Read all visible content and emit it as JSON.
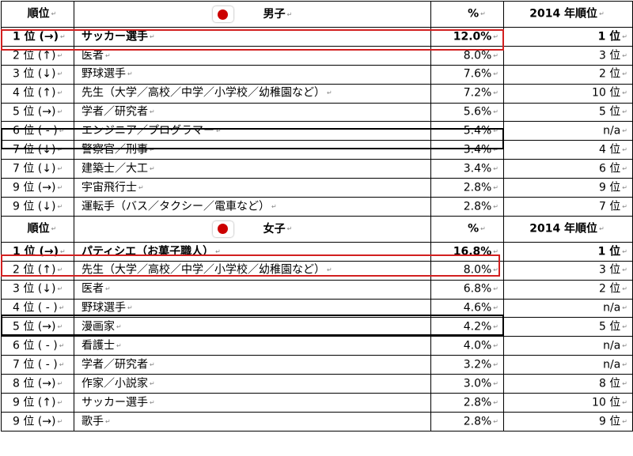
{
  "headers": {
    "rank": "順位",
    "boys": "男子",
    "girls": "女子",
    "percent": "%",
    "prev_rank": "2014 年順位"
  },
  "colors": {
    "flag_sun": "#cc0000",
    "highlight_red": "#d21f1f",
    "highlight_black": "#000000"
  },
  "boys": [
    {
      "rank": "1 位 (→)",
      "job": "サッカー選手",
      "pct": "12.0%",
      "prev": "1 位"
    },
    {
      "rank": "2 位 (↑)",
      "job": "医者",
      "pct": "8.0%",
      "prev": "3 位"
    },
    {
      "rank": "3 位 (↓)",
      "job": "野球選手",
      "pct": "7.6%",
      "prev": "2 位"
    },
    {
      "rank": "4 位 (↑)",
      "job": "先生（大学／高校／中学／小学校／幼稚園など）",
      "pct": "7.2%",
      "prev": "10 位"
    },
    {
      "rank": "5 位 (→)",
      "job": "学者／研究者",
      "pct": "5.6%",
      "prev": "5 位"
    },
    {
      "rank": "6 位 ( - )",
      "job": "エンジニア／プログラマー",
      "pct": "5.4%",
      "prev": "n/a"
    },
    {
      "rank": "7 位 (↓)",
      "job": "警察官／刑事",
      "pct": "3.4%",
      "prev": "4 位"
    },
    {
      "rank": "7 位 (↓)",
      "job": "建築士／大工",
      "pct": "3.4%",
      "prev": "6 位"
    },
    {
      "rank": "9 位 (→)",
      "job": "宇宙飛行士",
      "pct": "2.8%",
      "prev": "9 位"
    },
    {
      "rank": "9 位 (↓)",
      "job": "運転手（バス／タクシー／電車など）",
      "pct": "2.8%",
      "prev": "7 位"
    }
  ],
  "girls": [
    {
      "rank": "1 位 (→)",
      "job": "パティシエ（お菓子職人）",
      "pct": "16.8%",
      "prev": "1 位"
    },
    {
      "rank": "2 位 (↑)",
      "job": "先生（大学／高校／中学／小学校／幼稚園など）",
      "pct": "8.0%",
      "prev": "3 位"
    },
    {
      "rank": "3 位 (↓)",
      "job": "医者",
      "pct": "6.8%",
      "prev": "2 位"
    },
    {
      "rank": "4 位 ( - )",
      "job": "野球選手",
      "pct": "4.6%",
      "prev": "n/a"
    },
    {
      "rank": "5 位 (→)",
      "job": "漫画家",
      "pct": "4.2%",
      "prev": "5 位"
    },
    {
      "rank": "6 位 ( - )",
      "job": "看護士",
      "pct": "4.0%",
      "prev": "n/a"
    },
    {
      "rank": "7 位 ( - )",
      "job": "学者／研究者",
      "pct": "3.2%",
      "prev": "n/a"
    },
    {
      "rank": "8 位 (→)",
      "job": "作家／小説家",
      "pct": "3.0%",
      "prev": "8 位"
    },
    {
      "rank": "9 位 (↑)",
      "job": "サッカー選手",
      "pct": "2.8%",
      "prev": "10 位"
    },
    {
      "rank": "9 位 (→)",
      "job": "歌手",
      "pct": "2.8%",
      "prev": "9 位"
    }
  ]
}
